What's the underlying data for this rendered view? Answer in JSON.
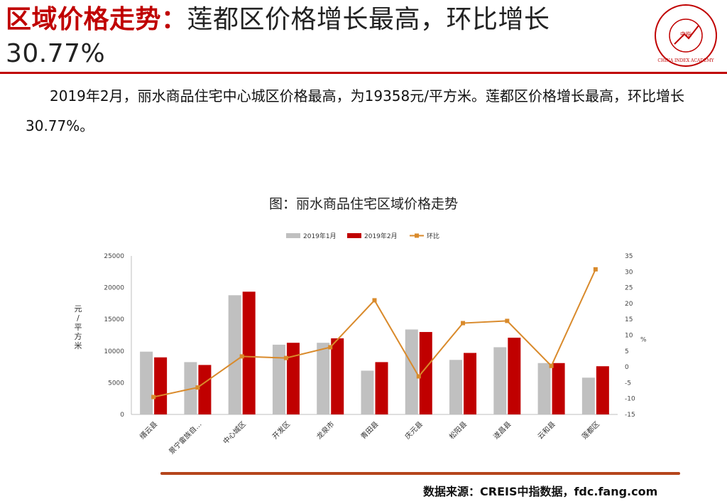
{
  "header": {
    "title_red": "区域价格走势：",
    "title_rest": "莲都区价格增长最高，环比增长30.77%",
    "logo_text": "CHINA INDEX ACADEMY",
    "logo_center": "中指"
  },
  "summary": "2019年2月，丽水商品住宅中心城区价格最高，为19358元/平方米。莲都区价格增长最高，环比增长30.77%。",
  "chart_data": {
    "type": "bar",
    "title": "图：丽水商品住宅区域价格走势",
    "categories": [
      "缙云县",
      "景宁畲族自…",
      "中心城区",
      "开发区",
      "龙泉市",
      "青田县",
      "庆元县",
      "松阳县",
      "遂昌县",
      "云和县",
      "莲都区"
    ],
    "series": [
      {
        "name": "2019年1月",
        "kind": "bar",
        "color": "#c0c0c0",
        "values": [
          9900,
          8250,
          18800,
          11000,
          11300,
          6900,
          13400,
          8600,
          10600,
          8100,
          5800
        ]
      },
      {
        "name": "2019年2月",
        "kind": "bar",
        "color": "#c00000",
        "values": [
          9000,
          7800,
          19358,
          11300,
          12000,
          8250,
          13000,
          9700,
          12100,
          8100,
          7600
        ]
      },
      {
        "name": "环比",
        "kind": "line",
        "axis": "right",
        "color": "#d98a2b",
        "values": [
          -9.5,
          -6.5,
          3.3,
          2.8,
          6.2,
          21.0,
          -3.0,
          13.8,
          14.5,
          0.3,
          30.77
        ]
      }
    ],
    "ylabel": "元/平方米",
    "y2label": "%",
    "ylim": [
      0,
      25000
    ],
    "yticks": [
      0,
      5000,
      10000,
      15000,
      20000,
      25000
    ],
    "y2lim": [
      -15,
      35
    ],
    "y2ticks": [
      -15,
      -10,
      -5,
      0,
      5,
      10,
      15,
      20,
      25,
      30,
      35
    ],
    "legend_position": "top"
  },
  "footer": {
    "source": "数据来源：CREIS中指数据，fdc.fang.com"
  }
}
